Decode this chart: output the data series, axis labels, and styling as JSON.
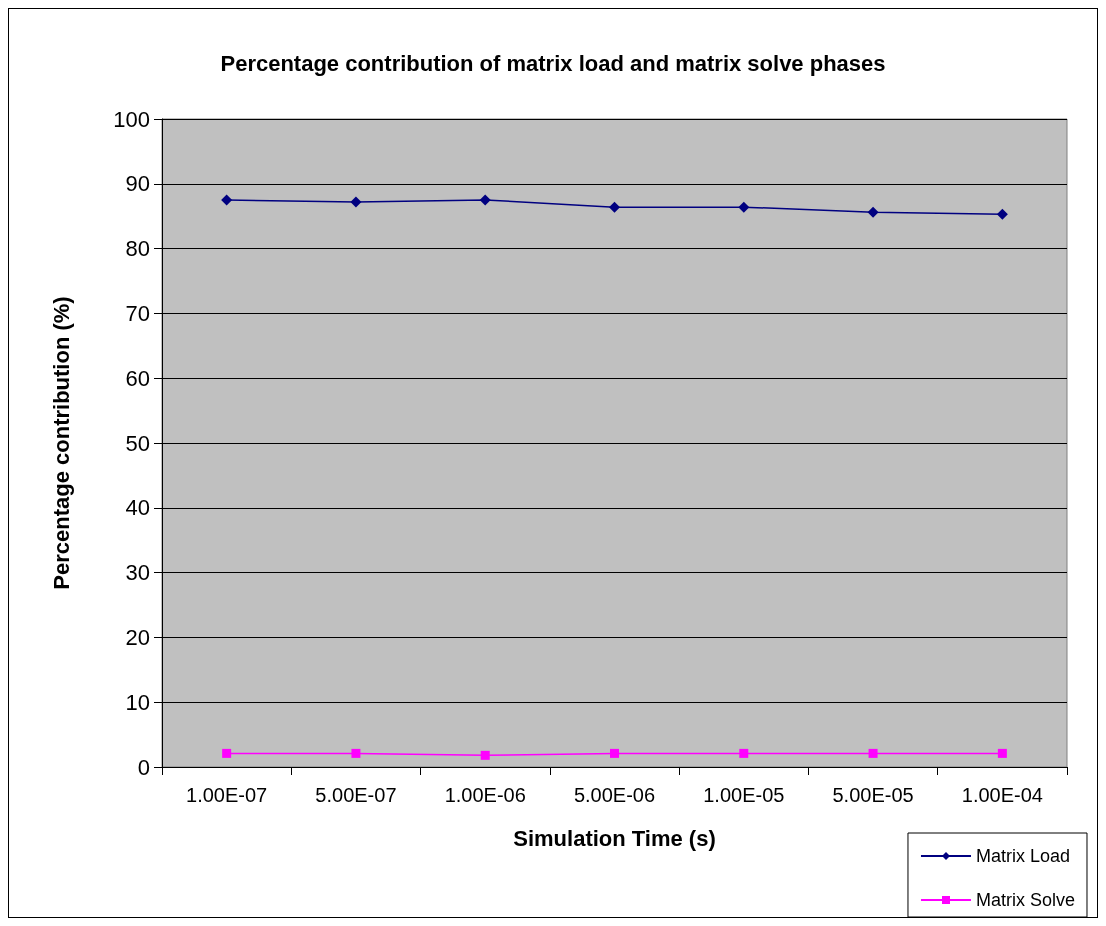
{
  "chart_data": {
    "type": "line",
    "title": "Percentage contribution of matrix load and matrix solve phases",
    "xlabel": "Simulation Time (s)",
    "ylabel": "Percentage contribution (%)",
    "categories": [
      "1.00E-07",
      "5.00E-07",
      "1.00E-06",
      "5.00E-06",
      "1.00E-05",
      "5.00E-05",
      "1.00E-04"
    ],
    "series": [
      {
        "name": "Matrix Load",
        "color": "#000080",
        "marker": "diamond",
        "values": [
          87.5,
          87.2,
          87.5,
          86.4,
          86.4,
          85.6,
          85.3
        ]
      },
      {
        "name": "Matrix Solve",
        "color": "#ff00ff",
        "marker": "square",
        "values": [
          2.1,
          2.1,
          1.8,
          2.1,
          2.1,
          2.1,
          2.1
        ]
      }
    ],
    "ylim": [
      0,
      100
    ],
    "yticks": [
      0,
      10,
      20,
      30,
      40,
      50,
      60,
      70,
      80,
      90,
      100
    ],
    "grid": "y",
    "legend": "bottom right"
  }
}
